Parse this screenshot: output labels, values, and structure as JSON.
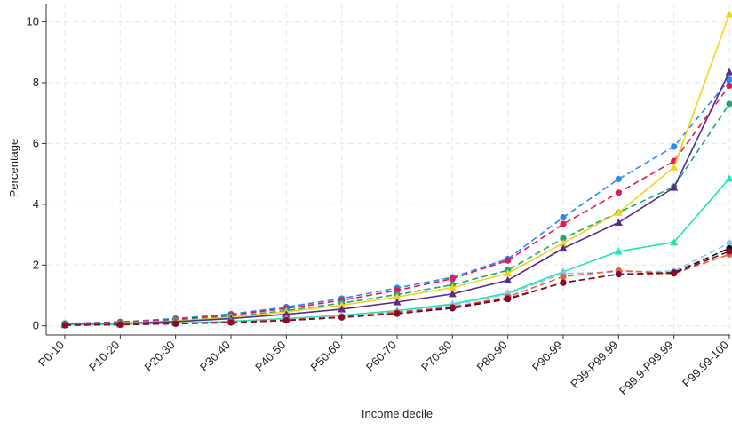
{
  "chart_data": {
    "type": "line",
    "title": "",
    "xlabel": "Income decile",
    "ylabel": "Percentage",
    "categories": [
      "P0-10",
      "P10-20",
      "P20-30",
      "P30-40",
      "P40-50",
      "P50-60",
      "P60-70",
      "P70-80",
      "P80-90",
      "P90-99",
      "P99-P99.99",
      "P99.9-P99.99",
      "P99.99-100"
    ],
    "ylim": [
      -0.3,
      10.6
    ],
    "yticks": [
      0,
      2,
      4,
      6,
      8,
      10
    ],
    "grid": true,
    "legend": "none",
    "series": [
      {
        "color": "#2b8cf0",
        "dash": true,
        "marker": "circle",
        "values": [
          0.08,
          0.13,
          0.24,
          0.39,
          0.62,
          0.9,
          1.25,
          1.6,
          2.2,
          3.57,
          4.83,
          5.9,
          8.1
        ]
      },
      {
        "color": "#e0195f",
        "dash": true,
        "marker": "circle",
        "values": [
          0.07,
          0.12,
          0.21,
          0.36,
          0.57,
          0.84,
          1.17,
          1.55,
          2.15,
          3.35,
          4.38,
          5.42,
          7.9
        ]
      },
      {
        "color": "#1ea578",
        "dash": true,
        "marker": "circle",
        "values": [
          0.06,
          0.1,
          0.18,
          0.31,
          0.5,
          0.75,
          1.03,
          1.35,
          1.83,
          2.88,
          3.73,
          4.58,
          7.3
        ]
      },
      {
        "color": "#f5d21e",
        "dash": false,
        "marker": "triangle",
        "values": [
          0.05,
          0.09,
          0.16,
          0.28,
          0.46,
          0.68,
          0.95,
          1.26,
          1.73,
          2.72,
          3.73,
          5.22,
          10.25
        ]
      },
      {
        "color": "#5a2a8c",
        "dash": false,
        "marker": "triangle",
        "values": [
          0.05,
          0.08,
          0.14,
          0.24,
          0.38,
          0.55,
          0.78,
          1.05,
          1.5,
          2.55,
          3.4,
          4.55,
          8.35
        ]
      },
      {
        "color": "#1ee6b4",
        "dash": false,
        "marker": "triangle",
        "values": [
          0.03,
          0.05,
          0.09,
          0.15,
          0.24,
          0.35,
          0.5,
          0.72,
          1.08,
          1.78,
          2.45,
          2.75,
          4.85
        ]
      },
      {
        "color": "#87c8f0",
        "dash": true,
        "marker": "circle",
        "values": [
          0.03,
          0.05,
          0.08,
          0.13,
          0.21,
          0.32,
          0.45,
          0.68,
          1.05,
          1.72,
          1.78,
          1.8,
          2.72
        ]
      },
      {
        "color": "#e8603c",
        "dash": true,
        "marker": "circle",
        "values": [
          0.03,
          0.05,
          0.08,
          0.12,
          0.2,
          0.3,
          0.45,
          0.62,
          0.95,
          1.62,
          1.82,
          1.72,
          2.35
        ]
      },
      {
        "color": "#111111",
        "dash": true,
        "marker": "circle",
        "values": [
          0.02,
          0.04,
          0.07,
          0.11,
          0.18,
          0.28,
          0.4,
          0.58,
          0.88,
          1.42,
          1.7,
          1.75,
          2.55
        ]
      },
      {
        "color": "#8c0a28",
        "dash": true,
        "marker": "circle",
        "values": [
          0.02,
          0.04,
          0.07,
          0.11,
          0.18,
          0.28,
          0.41,
          0.6,
          0.9,
          1.42,
          1.7,
          1.73,
          2.45
        ]
      }
    ]
  }
}
